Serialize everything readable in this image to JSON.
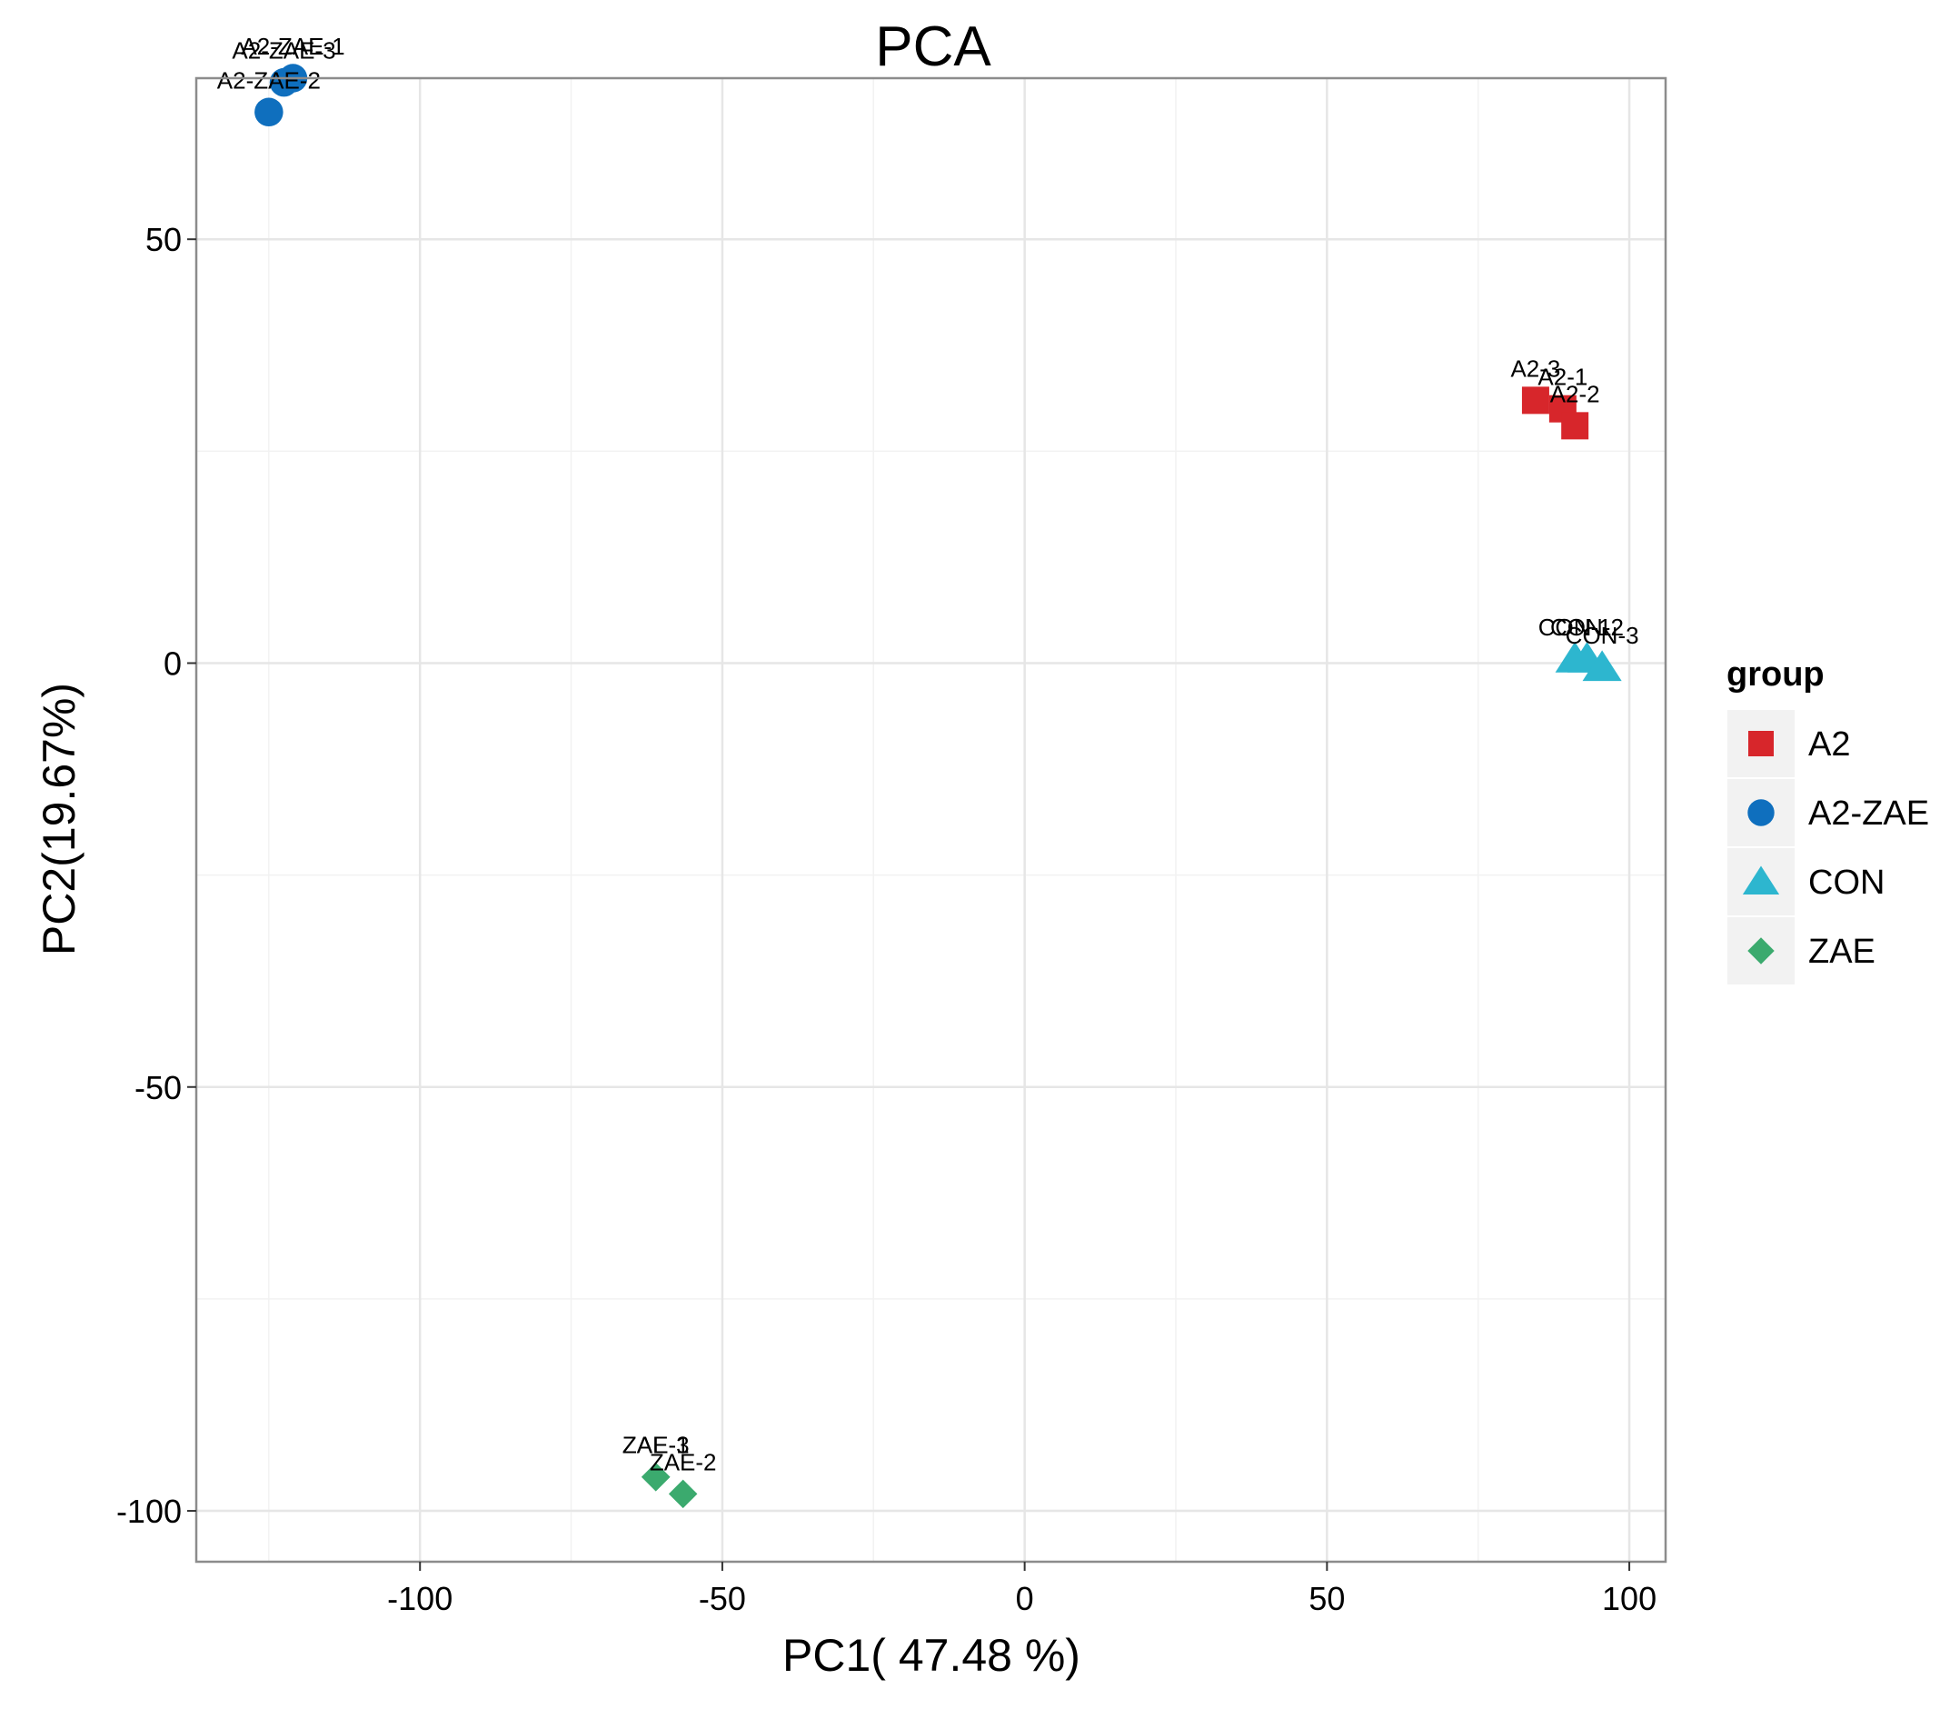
{
  "chart_data": {
    "type": "scatter",
    "title": "PCA",
    "xlabel": "PC1( 47.48 %)",
    "ylabel": "PC2(19.67%)",
    "xlim": [
      -137,
      106
    ],
    "ylim": [
      -106,
      69
    ],
    "xticks": [
      -100,
      -50,
      0,
      50,
      100
    ],
    "yticks": [
      -100,
      -50,
      0,
      50
    ],
    "grid": true,
    "legend": {
      "title": "group",
      "position": "right",
      "items": [
        {
          "label": "A2",
          "shape": "square",
          "color": "#D7262B"
        },
        {
          "label": "A2-ZAE",
          "shape": "circle",
          "color": "#0F6FBE"
        },
        {
          "label": "CON",
          "shape": "triangle",
          "color": "#2DB6CF"
        },
        {
          "label": "ZAE",
          "shape": "diamond",
          "color": "#3BAA6E"
        }
      ]
    },
    "series": [
      {
        "name": "A2",
        "shape": "square",
        "color": "#D7262B",
        "points": [
          {
            "label": "A2-3",
            "x": 84.5,
            "y": 31
          },
          {
            "label": "A2-1",
            "x": 89,
            "y": 30
          },
          {
            "label": "A2-2",
            "x": 91,
            "y": 28
          }
        ]
      },
      {
        "name": "A2-ZAE",
        "shape": "circle",
        "color": "#0F6FBE",
        "points": [
          {
            "label": "A2-ZAE-1",
            "x": -121,
            "y": 69
          },
          {
            "label": "A2-ZAE-3",
            "x": -122.5,
            "y": 68.5
          },
          {
            "label": "A2-ZAE-2",
            "x": -125,
            "y": 65
          }
        ]
      },
      {
        "name": "CON",
        "shape": "triangle",
        "color": "#2DB6CF",
        "points": [
          {
            "label": "CON-1",
            "x": 91,
            "y": 0.5
          },
          {
            "label": "CON-2",
            "x": 93,
            "y": 0.5
          },
          {
            "label": "CON-3",
            "x": 95.5,
            "y": -0.5
          }
        ]
      },
      {
        "name": "ZAE",
        "shape": "diamond",
        "color": "#3BAA6E",
        "points": [
          {
            "label": "ZAE-1",
            "x": -61,
            "y": -96
          },
          {
            "label": "ZAE-3",
            "x": -61,
            "y": -96
          },
          {
            "label": "ZAE-2",
            "x": -56.5,
            "y": -98
          }
        ]
      }
    ]
  }
}
